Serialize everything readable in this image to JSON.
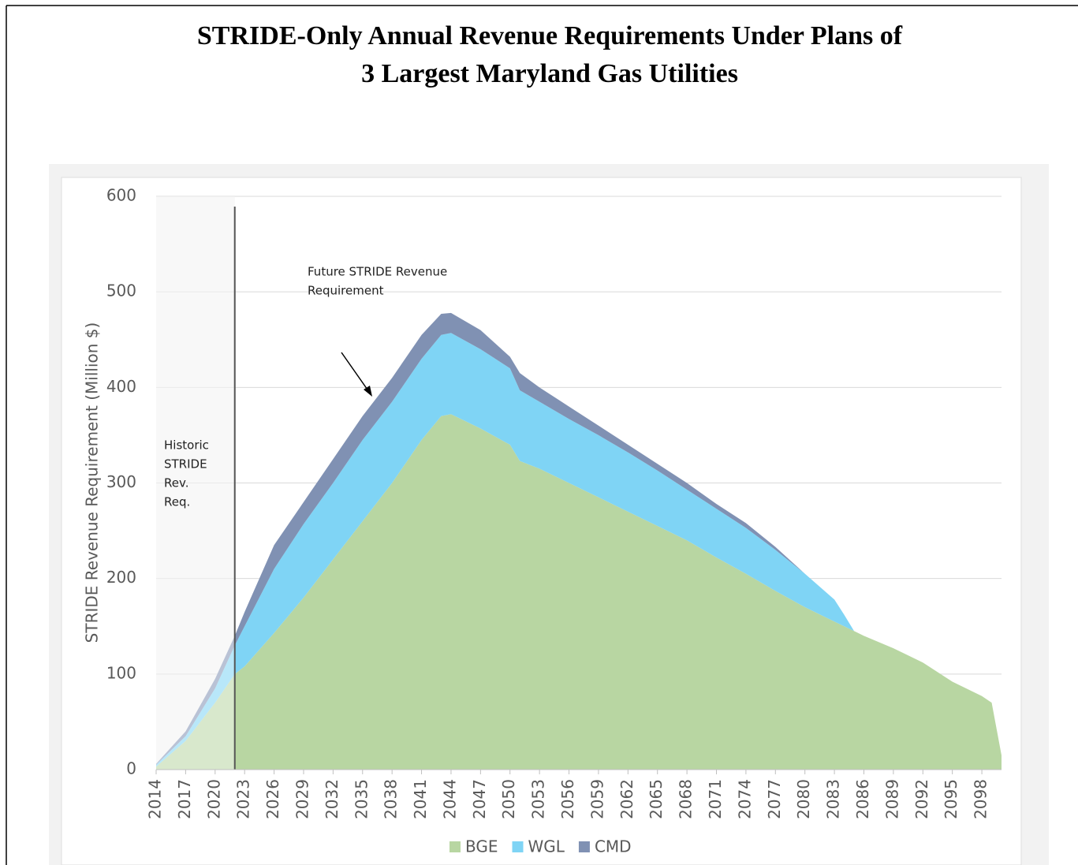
{
  "chart_data": {
    "type": "stacked_area",
    "title": [
      "STRIDE-Only Annual Revenue Requirements Under Plans of",
      "3 Largest Maryland Gas Utilities"
    ],
    "y_label": "STRIDE Revenue Requirement (Million $)",
    "annotations": [
      [
        "Future STRIDE Revenue",
        "Requirement"
      ],
      [
        "Historic",
        "STRIDE",
        "Rev.",
        "Req."
      ]
    ],
    "divider": 2022,
    "x": [
      2014,
      2017,
      2020,
      2022,
      2023,
      2026,
      2029,
      2032,
      2035,
      2038,
      2041,
      2043,
      2044,
      2047,
      2050,
      2051,
      2053,
      2056,
      2059,
      2062,
      2065,
      2068,
      2071,
      2074,
      2077,
      2080,
      2083,
      2084,
      2085,
      2086,
      2089,
      2092,
      2095,
      2098,
      2099,
      2100
    ],
    "series": [
      {
        "name": "BGE",
        "color": "#b8d6a2",
        "values": [
          3,
          30,
          70,
          100,
          108,
          143,
          180,
          220,
          260,
          300,
          345,
          370,
          372,
          357,
          340,
          323,
          315,
          300,
          285,
          270,
          255,
          240,
          222,
          205,
          187,
          170,
          155,
          150,
          145,
          140,
          127,
          112,
          92,
          77,
          70,
          15
        ]
      },
      {
        "name": "WGL",
        "color": "#7fd4f5",
        "values": [
          2,
          5,
          15,
          30,
          42,
          67,
          77,
          80,
          85,
          85,
          85,
          85,
          85,
          83,
          80,
          74,
          70,
          67,
          65,
          62,
          58,
          53,
          51,
          48,
          43,
          35,
          23,
          12,
          0,
          0,
          0,
          0,
          0,
          0,
          0,
          0
        ]
      },
      {
        "name": "CMD",
        "color": "#8091b3",
        "values": [
          1,
          5,
          10,
          10,
          15,
          25,
          23,
          25,
          25,
          25,
          25,
          22,
          21,
          20,
          12,
          18,
          15,
          13,
          10,
          8,
          7,
          7,
          5,
          5,
          3,
          0,
          0,
          0,
          0,
          0,
          0,
          0,
          0,
          0,
          0,
          0
        ]
      }
    ],
    "xlim": [
      2014,
      2100
    ],
    "xticks": [
      2014,
      2017,
      2020,
      2023,
      2026,
      2029,
      2032,
      2035,
      2038,
      2041,
      2044,
      2047,
      2050,
      2053,
      2056,
      2059,
      2062,
      2065,
      2068,
      2071,
      2074,
      2077,
      2080,
      2083,
      2086,
      2089,
      2092,
      2095,
      2098
    ],
    "ylim": [
      0,
      600
    ],
    "yticks": [
      0,
      100,
      200,
      300,
      400,
      500,
      600
    ],
    "grid": true,
    "legend": "bottom"
  }
}
